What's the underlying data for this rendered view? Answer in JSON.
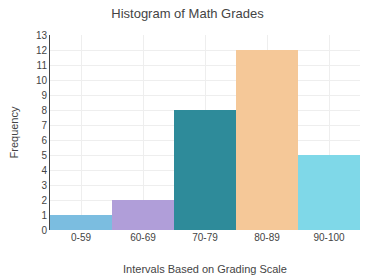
{
  "chart_data": {
    "type": "bar",
    "title": "Histogram of Math Grades",
    "xlabel": "Intervals Based on Grading Scale",
    "ylabel": "Frequency",
    "categories": [
      "0-59",
      "60-69",
      "70-79",
      "80-89",
      "90-100"
    ],
    "values": [
      1,
      2,
      8,
      12,
      5
    ],
    "colors": [
      "#7bbde0",
      "#b09ed9",
      "#2e8b9a",
      "#f5c898",
      "#7fd8e8"
    ],
    "ylim": [
      0,
      13
    ],
    "yticks": [
      0,
      1,
      2,
      3,
      4,
      5,
      6,
      7,
      8,
      9,
      10,
      11,
      12,
      13
    ],
    "grid": true
  }
}
